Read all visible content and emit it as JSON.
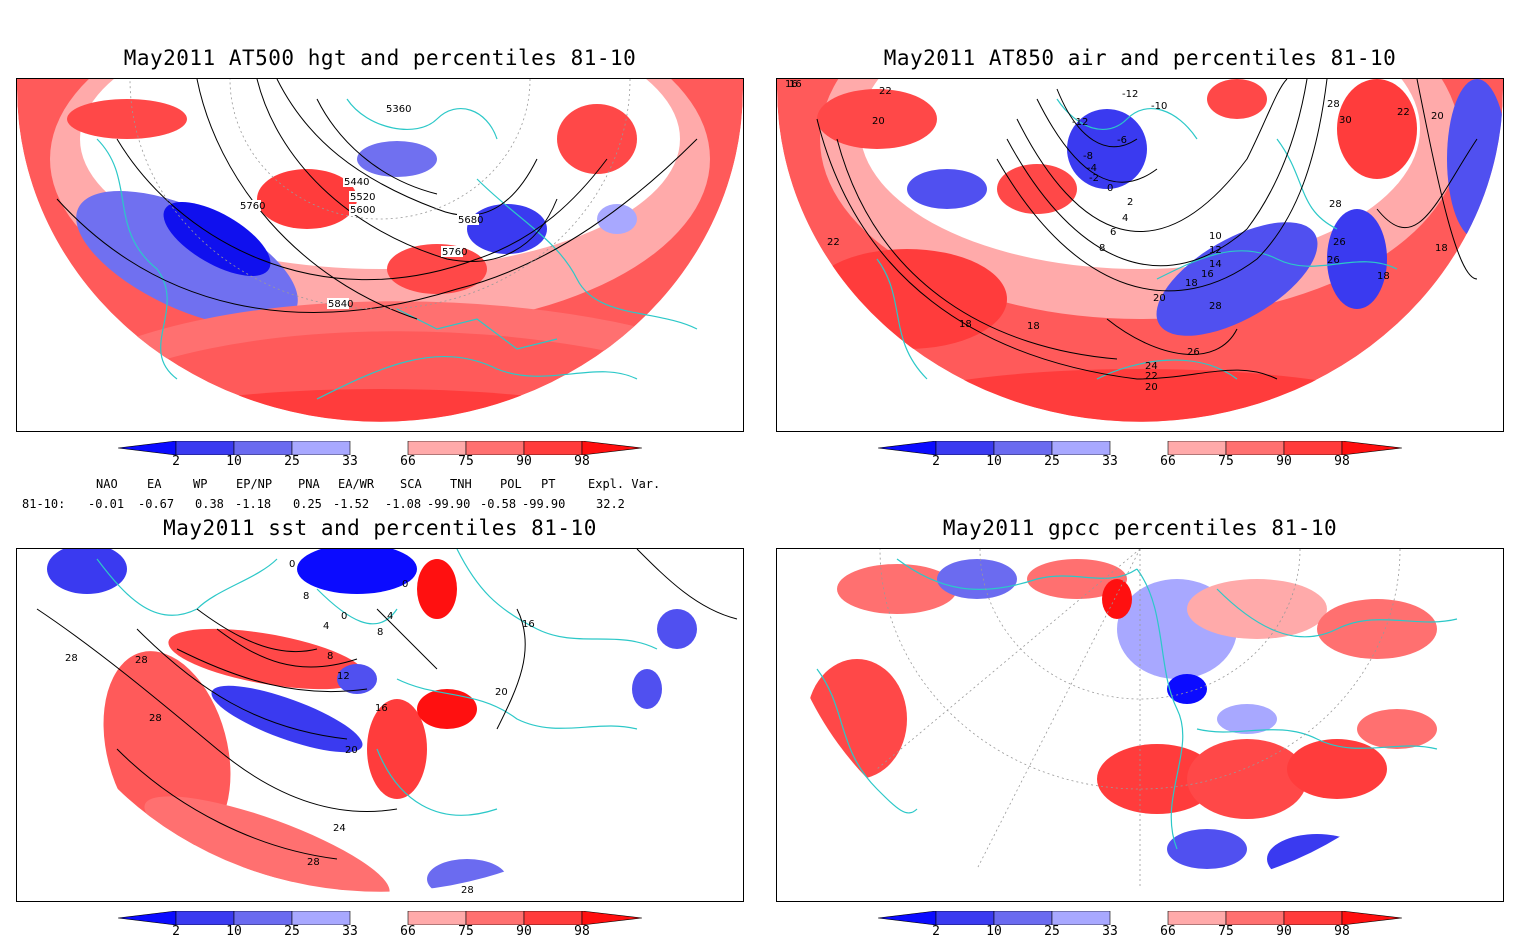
{
  "panels": {
    "p1": {
      "title": "May2011 AT500 hgt and percentiles 81-10",
      "contour_labels": [
        "5360",
        "5440",
        "5520",
        "5600",
        "5680",
        "5760",
        "5760",
        "5840"
      ]
    },
    "p2": {
      "title": "May2011 AT850 air and percentiles 81-10",
      "contour_labels": [
        "16",
        "22",
        "20",
        "-12",
        "-10",
        "-12",
        "-6",
        "-8",
        "-4",
        "-2",
        "0",
        "2",
        "4",
        "6",
        "8",
        "10",
        "12",
        "14",
        "16",
        "18",
        "20",
        "22",
        "18",
        "18",
        "26",
        "24",
        "22",
        "20",
        "28",
        "28",
        "26",
        "26",
        "30",
        "28",
        "22",
        "20",
        "18",
        "18",
        "16"
      ]
    },
    "p3": {
      "title": "May2011 sst and percentiles 81-10",
      "contour_labels": [
        "0",
        "0",
        "8",
        "4",
        "0",
        "4",
        "8",
        "8",
        "12",
        "16",
        "20",
        "24",
        "28",
        "28",
        "28",
        "28",
        "28",
        "20",
        "16"
      ]
    },
    "p4": {
      "title": "May2011 gpcc percentiles 81-10"
    }
  },
  "colorbar": {
    "labels": [
      "2",
      "10",
      "25",
      "33",
      "66",
      "75",
      "90",
      "98"
    ],
    "colors": [
      "#0b0bff",
      "#3a3af0",
      "#6b6bf0",
      "#a8a8ff",
      "#ffffff",
      "#ffaaaa",
      "#ff7070",
      "#ff3c3c",
      "#ff1010"
    ]
  },
  "indices": {
    "row_label": "81-10:",
    "names": [
      "NAO",
      "EA",
      "WP",
      "EP/NP",
      "PNA",
      "EA/WR",
      "SCA",
      "TNH",
      "POL",
      "PT",
      "Expl. Var."
    ],
    "values": [
      "-0.01",
      "-0.67",
      "0.38",
      "-1.18",
      "0.25",
      "-1.52",
      "-1.08",
      "-99.90",
      "-0.58",
      "-99.90",
      "32.2"
    ]
  },
  "colors": {
    "coast": "#2cc8c8",
    "red": "#ff4848",
    "blue": "#5050f0"
  }
}
